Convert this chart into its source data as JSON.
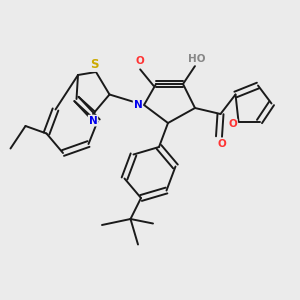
{
  "bg_color": "#ebebeb",
  "bond_color": "#1a1a1a",
  "bond_width": 1.4,
  "atom_colors": {
    "N": "#0000ee",
    "O": "#ff3333",
    "S": "#ccaa00",
    "H": "#888888",
    "C": "#1a1a1a"
  },
  "font_size": 7.5,
  "title": ""
}
